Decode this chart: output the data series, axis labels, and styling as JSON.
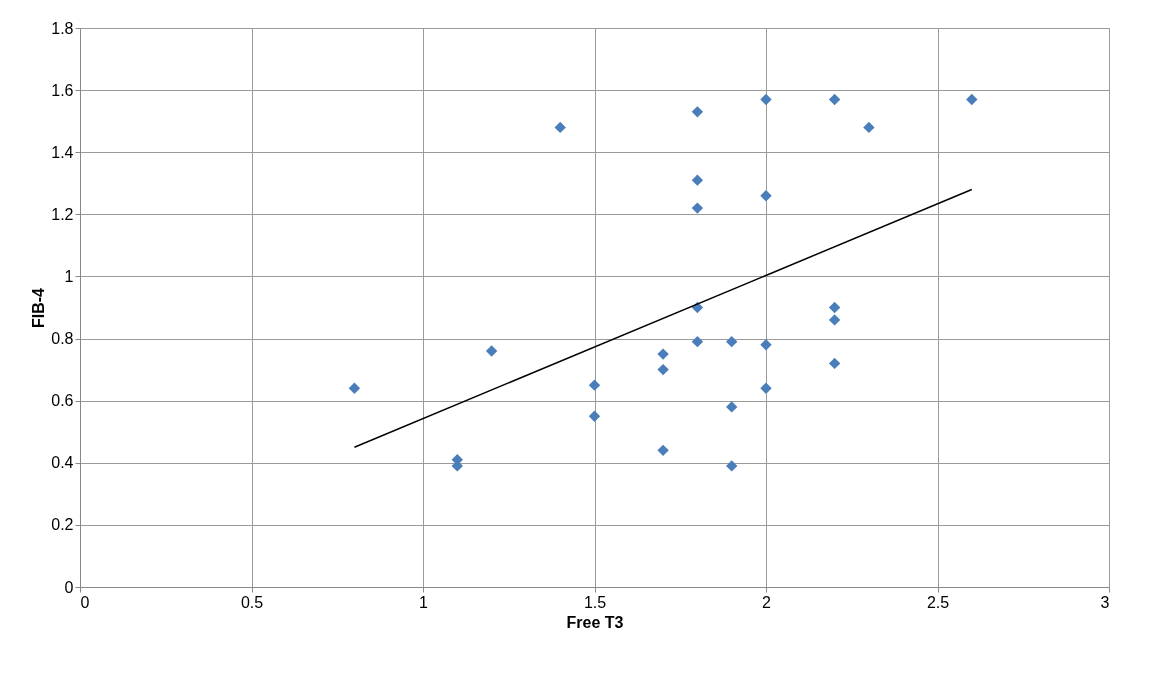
{
  "chart_data": {
    "type": "scatter",
    "xlabel": "Free T3",
    "ylabel": "FIB-4",
    "xlim": [
      0,
      3
    ],
    "xticks": [
      0,
      0.5,
      1,
      1.5,
      2,
      2.5,
      3
    ],
    "ylim": [
      0,
      1.8
    ],
    "yticks": [
      0,
      0.2,
      0.4,
      0.6,
      0.8,
      1,
      1.2,
      1.4,
      1.6,
      1.8
    ],
    "grid": true,
    "legend": false,
    "series": [
      {
        "marker": "diamond",
        "color": "#4a7ebb",
        "x": [
          0.8,
          1.1,
          1.1,
          1.2,
          1.4,
          1.5,
          1.5,
          1.7,
          1.7,
          1.7,
          1.8,
          1.8,
          1.8,
          1.8,
          1.8,
          1.9,
          1.9,
          1.9,
          2.0,
          2.0,
          2.0,
          2.0,
          2.2,
          2.2,
          2.2,
          2.2,
          2.3,
          2.6
        ],
        "values": [
          0.64,
          0.41,
          0.39,
          0.76,
          1.48,
          0.65,
          0.55,
          0.75,
          0.7,
          0.44,
          1.53,
          1.31,
          1.22,
          0.9,
          0.79,
          0.79,
          0.58,
          0.39,
          1.57,
          1.26,
          0.78,
          0.64,
          1.57,
          0.9,
          0.86,
          0.72,
          1.48,
          1.57
        ]
      },
      {
        "type": "line",
        "color": "#000000",
        "x": [
          0.8,
          2.6
        ],
        "values": [
          0.45,
          1.28
        ]
      }
    ]
  }
}
